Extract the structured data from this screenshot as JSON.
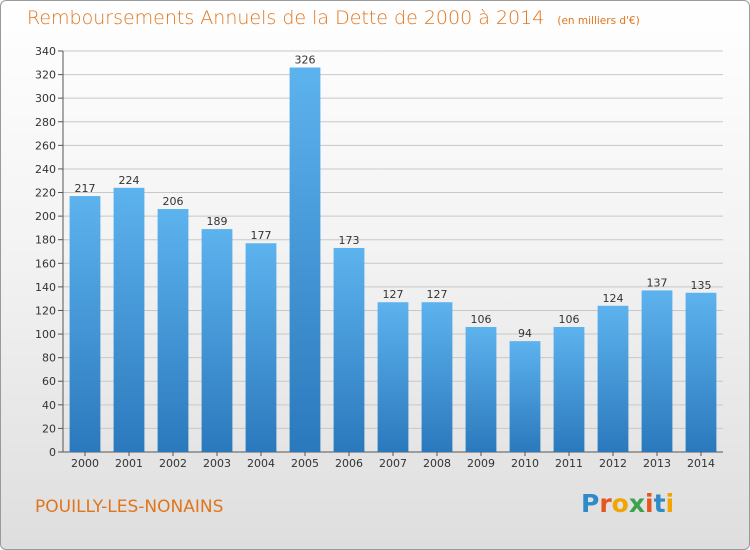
{
  "header": {
    "title": "Remboursements Annuels de la Dette de 2000 à 2014",
    "unit_note": "(en milliers d'€)"
  },
  "footer": {
    "commune": "POUILLY-LES-NONAINS",
    "logo_text": "Proxiti",
    "logo_colors": [
      "#2f8ac9",
      "#e8541e",
      "#f0a500",
      "#3aa34b",
      "#e8541e",
      "#2f8ac9",
      "#f0a500"
    ]
  },
  "colors": {
    "title": "#e0751d",
    "bar_top": "#5db3ee",
    "bar_bottom": "#2b79bd",
    "grid": "#c8c8c8"
  },
  "chart_data": {
    "type": "bar",
    "title": "Remboursements Annuels de la Dette de 2000 à 2014",
    "subtitle": "(en milliers d'€)",
    "categories": [
      "2000",
      "2001",
      "2002",
      "2003",
      "2004",
      "2005",
      "2006",
      "2007",
      "2008",
      "2009",
      "2010",
      "2011",
      "2012",
      "2013",
      "2014"
    ],
    "values": [
      217,
      224,
      206,
      189,
      177,
      326,
      173,
      127,
      127,
      106,
      94,
      106,
      124,
      137,
      135
    ],
    "ylim": [
      0,
      340
    ],
    "yticks": [
      0,
      20,
      40,
      60,
      80,
      100,
      120,
      140,
      160,
      180,
      200,
      220,
      240,
      260,
      280,
      300,
      320,
      340
    ],
    "grid": true,
    "value_labels": true
  }
}
